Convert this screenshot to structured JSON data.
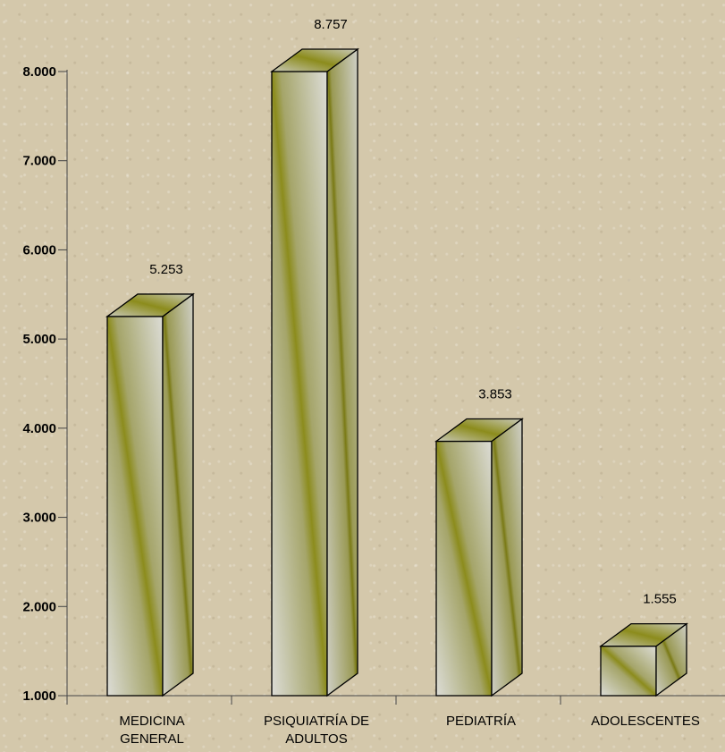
{
  "chart_data": {
    "type": "bar",
    "style": "3d",
    "categories": [
      [
        "MEDICINA",
        "GENERAL"
      ],
      [
        "PSIQUIATRÍA DE",
        "ADULTOS"
      ],
      [
        "PEDIATRÍA"
      ],
      [
        "ADOLESCENTES"
      ]
    ],
    "values": [
      5253,
      8757,
      3853,
      1555
    ],
    "value_labels": [
      "5.253",
      "8.757",
      "3.853",
      "1.555"
    ],
    "ylim": [
      1000,
      8000
    ],
    "yticks": [
      1000,
      2000,
      3000,
      4000,
      5000,
      6000,
      7000,
      8000
    ],
    "ytick_labels": [
      "1.000",
      "2.000",
      "3.000",
      "4.000",
      "5.000",
      "6.000",
      "7.000",
      "8.000"
    ],
    "title": "",
    "xlabel": "",
    "ylabel": "",
    "grid": false,
    "legend": "none"
  },
  "colors": {
    "background": "#d4c8ab",
    "bar_light": "#dcdcd6",
    "bar_mid": "#8c8c1c",
    "bar_dark": "#7a7a14",
    "outline": "#000000"
  }
}
